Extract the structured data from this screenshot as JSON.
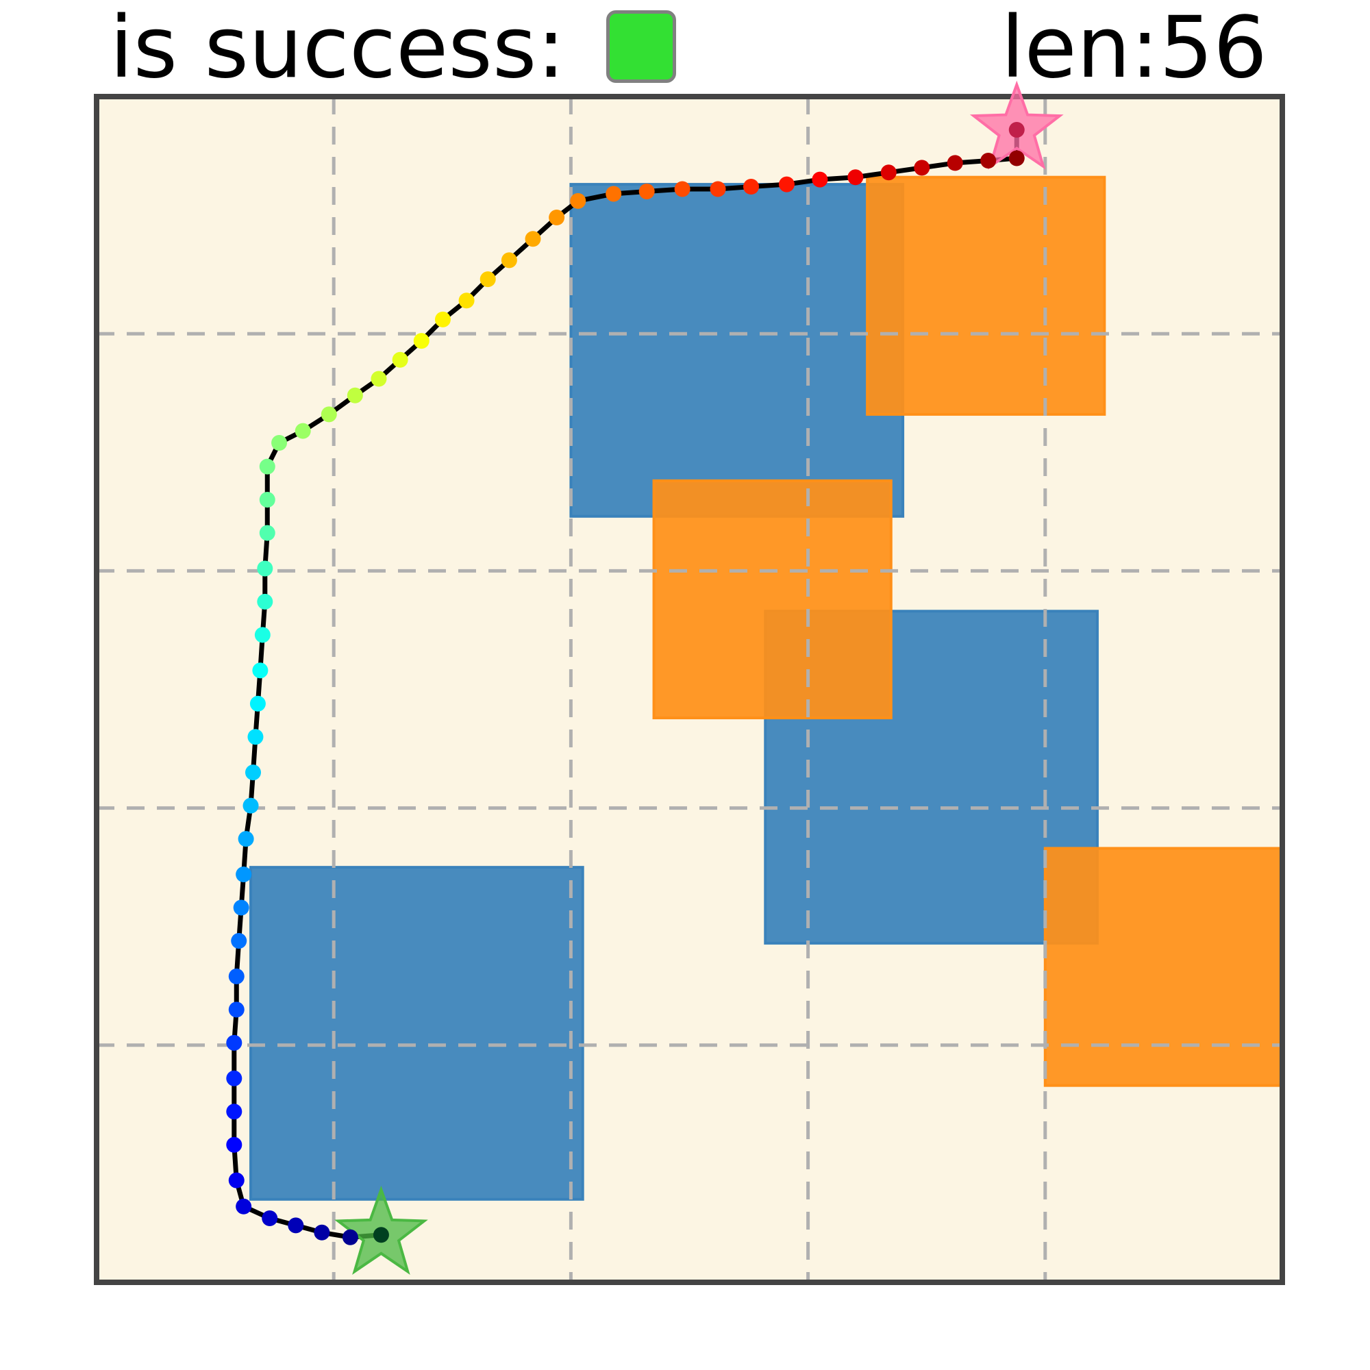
{
  "header": {
    "success_label": "is success:",
    "success_color": "#33e033",
    "len_label": "len:56"
  },
  "chart_data": {
    "type": "scatter",
    "title": "",
    "xlabel": "",
    "ylabel": "",
    "xlim": [
      0,
      5
    ],
    "ylim": [
      0,
      5
    ],
    "grid": true,
    "background": "#fcf5e3",
    "obstacles": [
      {
        "color": "#3a82bb",
        "x": 2.0,
        "y": 3.23,
        "w": 1.4,
        "h": 1.4
      },
      {
        "color": "#3a82bb",
        "x": 2.82,
        "y": 1.43,
        "w": 1.4,
        "h": 1.4
      },
      {
        "color": "#3a82bb",
        "x": 0.65,
        "y": 0.35,
        "w": 1.4,
        "h": 1.4
      },
      {
        "color": "#ff9019",
        "x": 3.25,
        "y": 3.66,
        "w": 1.0,
        "h": 1.0
      },
      {
        "color": "#ff9019",
        "x": 2.35,
        "y": 2.38,
        "w": 1.0,
        "h": 1.0
      },
      {
        "color": "#ff9019",
        "x": 4.0,
        "y": 0.83,
        "w": 1.0,
        "h": 1.0
      }
    ],
    "start": {
      "x": 1.2,
      "y": 0.2,
      "color": "#4bb843"
    },
    "goal": {
      "x": 3.88,
      "y": 4.86,
      "color": "#ff6ea6"
    },
    "path": [
      [
        1.2,
        0.2
      ],
      [
        1.07,
        0.19
      ],
      [
        0.95,
        0.21
      ],
      [
        0.84,
        0.24
      ],
      [
        0.73,
        0.27
      ],
      [
        0.62,
        0.32
      ],
      [
        0.59,
        0.43
      ],
      [
        0.58,
        0.58
      ],
      [
        0.58,
        0.72
      ],
      [
        0.58,
        0.86
      ],
      [
        0.58,
        1.01
      ],
      [
        0.59,
        1.15
      ],
      [
        0.59,
        1.29
      ],
      [
        0.6,
        1.44
      ],
      [
        0.61,
        1.58
      ],
      [
        0.62,
        1.72
      ],
      [
        0.63,
        1.87
      ],
      [
        0.65,
        2.01
      ],
      [
        0.66,
        2.15
      ],
      [
        0.67,
        2.3
      ],
      [
        0.68,
        2.44
      ],
      [
        0.69,
        2.58
      ],
      [
        0.7,
        2.73
      ],
      [
        0.71,
        2.87
      ],
      [
        0.71,
        3.01
      ],
      [
        0.72,
        3.16
      ],
      [
        0.72,
        3.3
      ],
      [
        0.72,
        3.44
      ],
      [
        0.77,
        3.54
      ],
      [
        0.87,
        3.59
      ],
      [
        0.98,
        3.66
      ],
      [
        1.09,
        3.74
      ],
      [
        1.19,
        3.81
      ],
      [
        1.28,
        3.89
      ],
      [
        1.37,
        3.97
      ],
      [
        1.46,
        4.06
      ],
      [
        1.56,
        4.14
      ],
      [
        1.65,
        4.23
      ],
      [
        1.74,
        4.31
      ],
      [
        1.84,
        4.4
      ],
      [
        1.94,
        4.49
      ],
      [
        2.03,
        4.56
      ],
      [
        2.18,
        4.59
      ],
      [
        2.32,
        4.6
      ],
      [
        2.47,
        4.61
      ],
      [
        2.62,
        4.61
      ],
      [
        2.76,
        4.62
      ],
      [
        2.91,
        4.63
      ],
      [
        3.05,
        4.65
      ],
      [
        3.2,
        4.66
      ],
      [
        3.34,
        4.68
      ],
      [
        3.48,
        4.7
      ],
      [
        3.62,
        4.72
      ],
      [
        3.76,
        4.73
      ],
      [
        3.88,
        4.74
      ],
      [
        3.88,
        4.86
      ]
    ]
  }
}
